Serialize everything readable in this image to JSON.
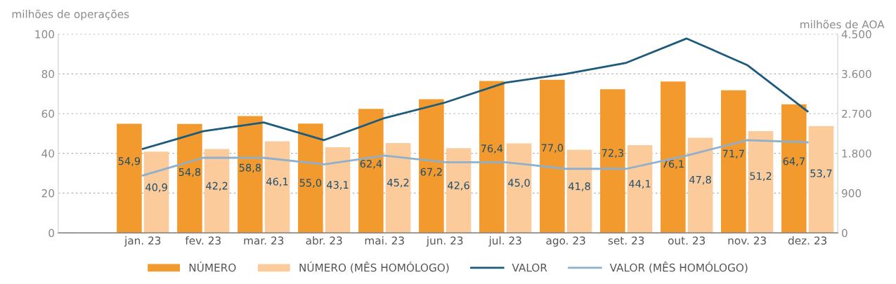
{
  "chart_data": {
    "type": "bar",
    "ylabel": "milhões de operações",
    "y2label": "milhões de AOA",
    "categories": [
      "jan. 23",
      "fev. 23",
      "mar. 23",
      "abr. 23",
      "mai. 23",
      "jun. 23",
      "jul. 23",
      "ago. 23",
      "set. 23",
      "out. 23",
      "nov. 23",
      "dez. 23"
    ],
    "series": [
      {
        "name": "NÚMERO",
        "color": "#f39a2e",
        "values": [
          54.9,
          54.8,
          58.8,
          55.0,
          62.4,
          67.2,
          76.4,
          77.0,
          72.3,
          76.1,
          71.7,
          64.7
        ],
        "value_labels": [
          "54,9",
          "54,8",
          "58,8",
          "55,0",
          "62,4",
          "67,2",
          "76,4",
          "77,0",
          "72,3",
          "76,1",
          "71,7",
          "64,7"
        ]
      },
      {
        "name": "NÚMERO (MÊS HOMÓLOGO)",
        "color": "#fbcb9c",
        "values": [
          40.9,
          42.2,
          46.1,
          43.1,
          45.2,
          42.6,
          45.0,
          41.8,
          44.1,
          47.8,
          51.2,
          53.7
        ],
        "value_labels": [
          "40,9",
          "42,2",
          "46,1",
          "43,1",
          "45,2",
          "42,6",
          "45,0",
          "41,8",
          "44,1",
          "47,8",
          "51,2",
          "53,7"
        ]
      },
      {
        "name": "VALOR",
        "type": "line",
        "axis": "y2",
        "color": "#1d5b7c",
        "values": [
          1900,
          2300,
          2500,
          2100,
          2600,
          2950,
          3400,
          3600,
          3850,
          4400,
          3800,
          2750
        ]
      },
      {
        "name": "VALOR (MÊS HOMÓLOGO)",
        "type": "line",
        "axis": "y2",
        "color": "#8fb0cb",
        "values": [
          1300,
          1700,
          1700,
          1550,
          1750,
          1600,
          1600,
          1450,
          1450,
          1750,
          2100,
          2050
        ]
      }
    ],
    "ylim": [
      0,
      100
    ],
    "yticks": [
      0,
      20,
      40,
      60,
      80,
      100
    ],
    "y2lim": [
      0,
      4500
    ],
    "y2ticks": [
      0,
      {
        "value": 900,
        "label": "900"
      },
      {
        "value": 1800,
        "label": "1.800"
      },
      {
        "value": 2700,
        "label": "2.700"
      },
      {
        "value": 3600,
        "label": "3.600"
      },
      {
        "value": 4500,
        "label": "4.500"
      }
    ],
    "grid": "y",
    "legend": "bottom",
    "line_style": "solid",
    "marker": "none"
  }
}
